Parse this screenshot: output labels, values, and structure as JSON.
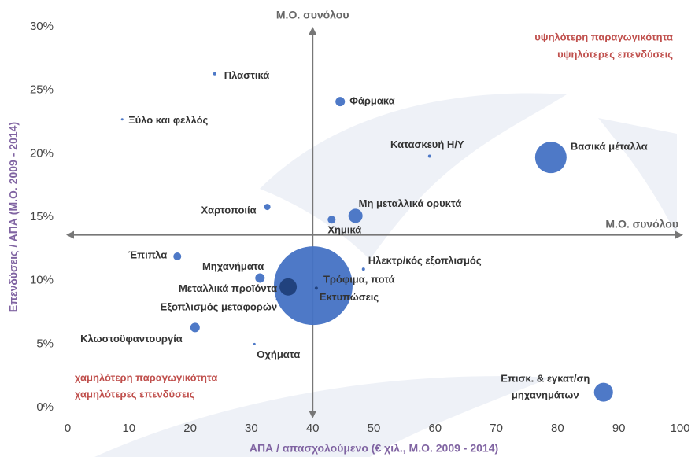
{
  "chart_data": {
    "type": "scatter",
    "x_label": "ΑΠΑ / απασχολούμενο (€ χιλ., Μ.Ο. 2009 - 2014)",
    "y_label": "Επενδύσεις / ΑΠΑ (Μ.Ο. 2009 - 2014)",
    "annotations": [
      "υψηλότερη παραγωγικότητα",
      "υψηλότερες επενδύσεις",
      "χαμηλότερη παραγωγικότητα",
      "χαμηλότερες επενδύσεις"
    ],
    "reference_lines": {
      "x": 40,
      "y": 13.6,
      "x_label": "Μ.Ο. συνόλου",
      "y_label": "Μ.Ο. συνόλου",
      "color": "#777777"
    },
    "xlim": [
      0,
      100
    ],
    "xticks": [
      0,
      10,
      20,
      30,
      40,
      50,
      60,
      70,
      80,
      90,
      100
    ],
    "ylim": [
      0,
      30
    ],
    "yticks": [
      {
        "value": 0,
        "label": "0%"
      },
      {
        "value": 5,
        "label": "5%"
      },
      {
        "value": 10,
        "label": "10%"
      },
      {
        "value": 15,
        "label": "15%"
      },
      {
        "value": 20,
        "label": "20%"
      },
      {
        "value": 25,
        "label": "25%"
      },
      {
        "value": 30,
        "label": "30%"
      }
    ],
    "labels": [
      "Πλαστικά",
      "Ξύλο και φελλός",
      "Φάρμακα",
      "Κατασκευή Η/Υ",
      "Βασικά μέταλλα",
      "Χαρτοποιία",
      "Μη μεταλλικά ορυκτά",
      "Χημικά",
      "Έπιπλα",
      "Ηλεκτρ/κός εξοπλισμός",
      "Μηχανήματα",
      "Τρόφιμα, ποτά",
      "Μεταλλικά προϊόντα",
      "Εκτυπώσεις",
      "Εξοπλισμός μεταφορών",
      "Κλωστοϋφαντουργία",
      "Οχήματα",
      "Επισκ. & εγκατ/ση\nμηχανημάτων"
    ],
    "x": [
      24.0,
      8.9,
      44.5,
      59.1,
      78.9,
      32.6,
      47.0,
      43.1,
      17.9,
      48.3,
      31.4,
      40.1,
      36.0,
      40.6,
      34.2,
      20.8,
      30.5,
      87.5
    ],
    "values": [
      26.3,
      22.7,
      24.1,
      19.8,
      19.7,
      15.8,
      15.1,
      14.8,
      11.9,
      10.9,
      10.2,
      9.6,
      9.5,
      9.4,
      8.5,
      6.3,
      5.0,
      1.2
    ],
    "sizes": [
      4,
      2,
      36,
      4,
      400,
      16,
      81,
      25,
      25,
      4,
      36,
      2500,
      121,
      4,
      2,
      36,
      1,
      144
    ],
    "colors": [
      "#4472c4",
      "#4472c4",
      "#4472c4",
      "#4472c4",
      "#4472c4",
      "#4472c4",
      "#4472c4",
      "#4472c4",
      "#4472c4",
      "#4472c4",
      "#4472c4",
      "#4472c4",
      "#1f3f7a",
      "#1f3f7a",
      "#4472c4",
      "#4472c4",
      "#4472c4",
      "#4472c4"
    ]
  }
}
